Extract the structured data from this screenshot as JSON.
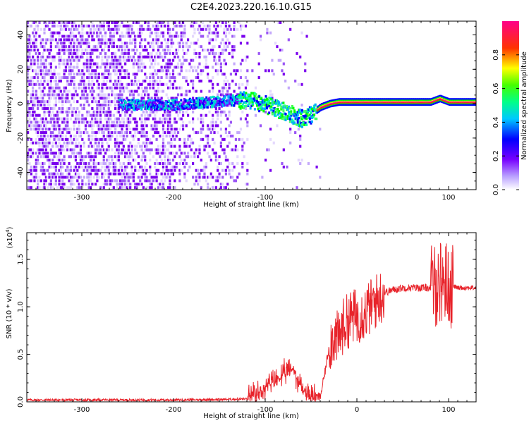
{
  "figure": {
    "title": "C2E4.2023.220.16.10.G15"
  },
  "chart_data": [
    {
      "type": "heatmap",
      "xlabel": "Height of straight line (km)",
      "ylabel": "Frequency (Hz)",
      "xlim": [
        -360,
        130
      ],
      "ylim": [
        -50,
        48
      ],
      "xticks": [
        -300,
        -200,
        -100,
        0,
        100
      ],
      "yticks": [
        -40,
        -20,
        0,
        20,
        40
      ],
      "colorbar": {
        "label": "Normalized spectral amplitude",
        "range": [
          0,
          1
        ],
        "ticks": [
          "0.0",
          "0.2",
          "0.4",
          "0.6",
          "0.8"
        ],
        "colors": [
          "#ffffff",
          "#7700ff",
          "#0000ff",
          "#00ffff",
          "#00ff00",
          "#ffff00",
          "#ff0000",
          "#ff00aa"
        ]
      },
      "ridge": {
        "x": [
          -260,
          -200,
          -150,
          -120,
          -100,
          -80,
          -60,
          -50,
          -40,
          -30,
          -20,
          0,
          80,
          90,
          100,
          130
        ],
        "y": [
          0,
          0,
          2,
          3,
          0,
          -4,
          -8,
          -6,
          -2,
          0,
          1,
          1,
          1,
          3,
          1,
          1
        ]
      }
    },
    {
      "type": "line",
      "xlabel": "Height of straight line (km)",
      "ylabel": "SNR (10 * v/v)",
      "y_scale_label": "(x10",
      "y_scale_exponent": "4",
      "xlim": [
        -360,
        130
      ],
      "ylim": [
        0,
        1.78
      ],
      "xticks": [
        -300,
        -200,
        -100,
        0,
        100
      ],
      "yticks": [
        "0.0",
        "0.5",
        "1.0",
        "1.5"
      ],
      "line_color": "#e8232a",
      "x": [
        -360,
        -300,
        -200,
        -150,
        -120,
        -110,
        -100,
        -90,
        -80,
        -70,
        -60,
        -50,
        -40,
        -35,
        -30,
        -25,
        -20,
        -15,
        -10,
        -5,
        0,
        10,
        20,
        30,
        40,
        50,
        60,
        70,
        80,
        85,
        90,
        95,
        100,
        105,
        110,
        120,
        130
      ],
      "y": [
        0.02,
        0.02,
        0.02,
        0.025,
        0.03,
        0.06,
        0.15,
        0.22,
        0.28,
        0.35,
        0.15,
        0.05,
        0.05,
        0.3,
        0.6,
        0.7,
        0.65,
        0.8,
        0.85,
        0.9,
        0.9,
        0.95,
        1.05,
        1.15,
        1.18,
        1.2,
        1.2,
        1.2,
        1.2,
        1.22,
        1.25,
        1.3,
        1.2,
        1.22,
        1.2,
        1.2,
        1.2
      ]
    }
  ]
}
